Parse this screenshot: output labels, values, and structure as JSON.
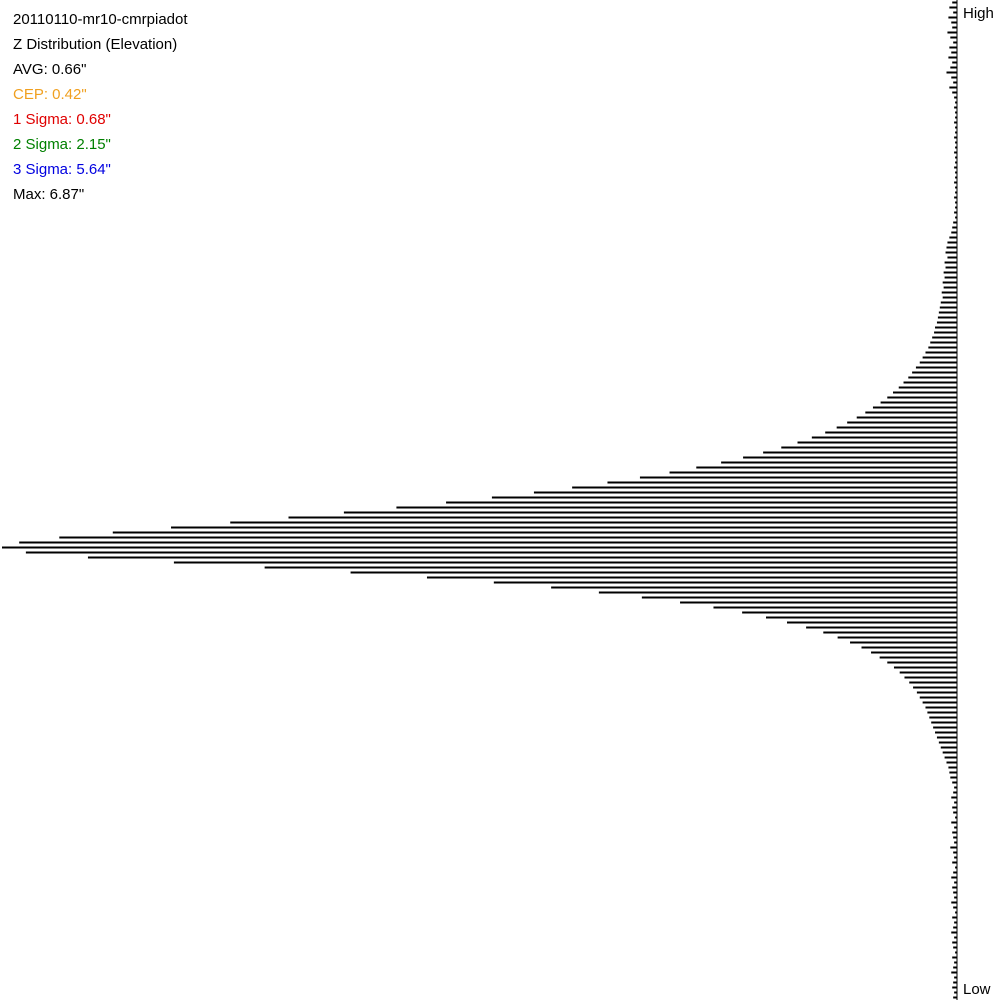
{
  "chart_data": {
    "type": "hbar-histogram",
    "stats": [
      {
        "text": "20110110-mr10-cmrpiadot",
        "color": "#000000"
      },
      {
        "text": "Z Distribution (Elevation)",
        "color": "#000000"
      },
      {
        "text": "AVG: 0.66\"",
        "color": "#000000"
      },
      {
        "text": "CEP: 0.42\"",
        "color": "#f0a020"
      },
      {
        "text": "1 Sigma: 0.68\"",
        "color": "#e00000"
      },
      {
        "text": "2 Sigma: 2.15\"",
        "color": "#008000"
      },
      {
        "text": "3 Sigma: 5.64\"",
        "color": "#0000e0"
      },
      {
        "text": "Max: 6.87\"",
        "color": "#000000"
      }
    ],
    "axis_top_label": "High",
    "axis_bottom_label": "Low",
    "color": "#000000",
    "xlim": [
      0,
      100
    ],
    "values": [
      0.5,
      0.8,
      0.4,
      0.9,
      0.6,
      0.5,
      1.0,
      0.7,
      0.4,
      0.8,
      0.6,
      0.9,
      0.5,
      0.7,
      1.1,
      0.6,
      0.4,
      0.8,
      0.5,
      0.3,
      0.2,
      0.3,
      0.2,
      0.2,
      0.3,
      0.2,
      0.2,
      0.3,
      0.2,
      0.2,
      0.3,
      0.2,
      0.2,
      0.3,
      0.2,
      0.2,
      0.3,
      0.2,
      0.2,
      0.3,
      0.2,
      0.2,
      0.3,
      0.2,
      0.4,
      0.5,
      0.6,
      0.8,
      1.0,
      1.1,
      1.2,
      1.0,
      1.3,
      1.2,
      1.4,
      1.3,
      1.5,
      1.4,
      1.6,
      1.5,
      1.7,
      1.8,
      1.9,
      2.0,
      2.1,
      2.3,
      2.4,
      2.6,
      2.8,
      3.0,
      3.3,
      3.6,
      3.9,
      4.3,
      4.7,
      5.1,
      5.6,
      6.1,
      6.7,
      7.3,
      8.0,
      8.8,
      9.6,
      10.5,
      11.5,
      12.6,
      13.8,
      15.2,
      16.7,
      18.4,
      20.3,
      22.4,
      24.7,
      27.3,
      30.1,
      33.2,
      36.6,
      40.3,
      44.3,
      48.7,
      53.5,
      58.7,
      64.2,
      70.0,
      76.1,
      82.3,
      88.4,
      94.0,
      98.2,
      100,
      97.5,
      91.0,
      82.0,
      72.5,
      63.5,
      55.5,
      48.5,
      42.5,
      37.5,
      33.0,
      29.0,
      25.5,
      22.5,
      20.0,
      17.8,
      15.8,
      14.0,
      12.5,
      11.2,
      10.0,
      9.0,
      8.1,
      7.3,
      6.6,
      6.0,
      5.5,
      5.0,
      4.6,
      4.2,
      3.9,
      3.6,
      3.3,
      3.1,
      2.9,
      2.7,
      2.5,
      2.3,
      2.1,
      1.9,
      1.7,
      1.5,
      1.3,
      1.1,
      0.9,
      0.8,
      0.7,
      0.5,
      0.3,
      0.4,
      0.6,
      0.3,
      0.5,
      0.4,
      0.2,
      0.6,
      0.3,
      0.5,
      0.4,
      0.3,
      0.7,
      0.4,
      0.3,
      0.5,
      0.2,
      0.4,
      0.6,
      0.3,
      0.5,
      0.4,
      0.3,
      0.6,
      0.4,
      0.2,
      0.5,
      0.3,
      0.4,
      0.6,
      0.3,
      0.5,
      0.4,
      0.2,
      0.5,
      0.3,
      0.4,
      0.6,
      0.3,
      0.4,
      0.5,
      0.3,
      0.4
    ]
  }
}
